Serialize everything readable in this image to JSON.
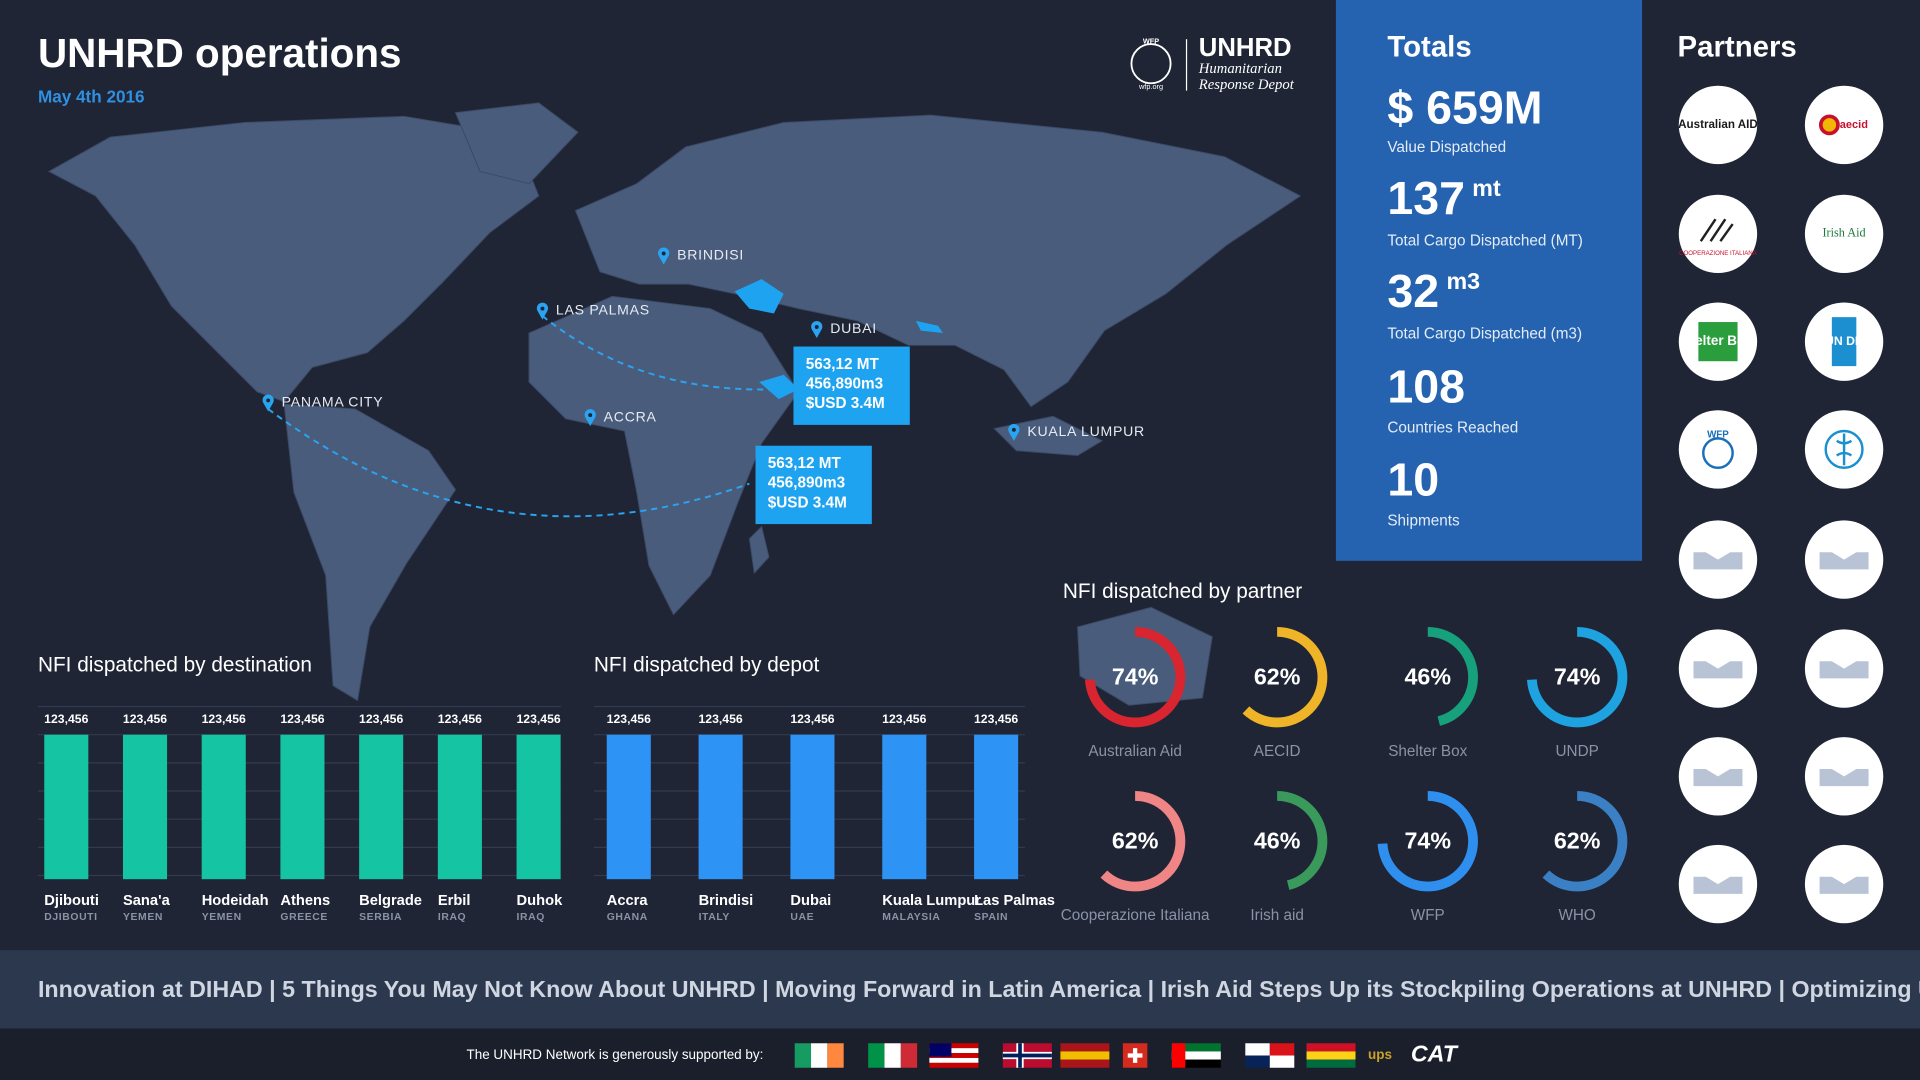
{
  "header": {
    "title": "UNHRD operations",
    "date": "May 4th 2016",
    "logo": {
      "emblem": "WFP",
      "site": "wfp.org",
      "name": "UNHRD",
      "line1": "Humanitarian",
      "line2": "Response Depot"
    }
  },
  "map": {
    "locations": [
      "BRINDISI",
      "LAS PALMAS",
      "DUBAI",
      "PANAMA CITY",
      "ACCRA",
      "KUALA LUMPUR"
    ],
    "callouts": [
      [
        "563,12 MT",
        "456,890m3",
        "$USD 3.4M"
      ],
      [
        "563,12 MT",
        "456,890m3",
        "$USD 3.4M"
      ]
    ]
  },
  "totals": {
    "title": "Totals",
    "items": [
      {
        "value": "$ 659M",
        "label": "Value Dispatched"
      },
      {
        "value": "137",
        "unit": "mt",
        "label": "Total Cargo Dispatched (MT)"
      },
      {
        "value": "32",
        "unit": "m3",
        "label": "Total Cargo Dispatched (m3)"
      },
      {
        "value": "108",
        "label": "Countries Reached"
      },
      {
        "value": "10",
        "label": "Shipments"
      }
    ]
  },
  "partners": {
    "title": "Partners",
    "logos": [
      "Australian AID",
      "aecid",
      "COOPERAZIONE ITALIANA",
      "Irish Aid",
      "shelter BOX",
      "UN DP",
      "WFP"
    ]
  },
  "chart_data": [
    {
      "type": "bar",
      "title": "NFI dispatched by destination",
      "categories": [
        "Djibouti",
        "Sana'a",
        "Hodeidah",
        "Athens",
        "Belgrade",
        "Erbil",
        "Duhok"
      ],
      "subcategories": [
        "DJIBOUTI",
        "YEMEN",
        "YEMEN",
        "GREECE",
        "SERBIA",
        "IRAQ",
        "IRAQ"
      ],
      "values": [
        123456,
        123456,
        123456,
        123456,
        123456,
        123456,
        123456
      ],
      "value_labels": [
        "123,456",
        "123,456",
        "123,456",
        "123,456",
        "123,456",
        "123,456",
        "123,456"
      ],
      "color": "#14c4a2"
    },
    {
      "type": "bar",
      "title": "NFI dispatched by depot",
      "categories": [
        "Accra",
        "Brindisi",
        "Dubai",
        "Kuala Lumpur",
        "Las Palmas"
      ],
      "subcategories": [
        "GHANA",
        "ITALY",
        "UAE",
        "MALAYSIA",
        "SPAIN"
      ],
      "values": [
        123456,
        123456,
        123456,
        123456,
        123456
      ],
      "value_labels": [
        "123,456",
        "123,456",
        "123,456",
        "123,456",
        "123,456"
      ],
      "color": "#2d93f5"
    },
    {
      "type": "donut",
      "title": "NFI dispatched by partner",
      "categories": [
        "Australian Aid",
        "AECID",
        "Shelter Box",
        "UNDP",
        "Cooperazione Italiana",
        "Irish aid",
        "WFP",
        "WHO"
      ],
      "values": [
        74,
        62,
        46,
        74,
        62,
        46,
        74,
        62
      ],
      "value_labels": [
        "74%",
        "62%",
        "46%",
        "74%",
        "62%",
        "46%",
        "74%",
        "62%"
      ],
      "colors": [
        "#d9252f",
        "#f0b429",
        "#17a07c",
        "#1ea3e0",
        "#f08585",
        "#3a9a5c",
        "#2f8fef",
        "#3b7fc4"
      ]
    }
  ],
  "news": "Innovation at DIHAD | 5 Things You May Not Know About UNHRD | Moving Forward in Latin America | Irish Aid Steps Up its Stockpiling Operations at UNHRD | Optimizing UNHRD",
  "footer": {
    "text": "The UNHRD Network is generously supported by:",
    "sponsors": [
      "ups",
      "CAT"
    ]
  }
}
